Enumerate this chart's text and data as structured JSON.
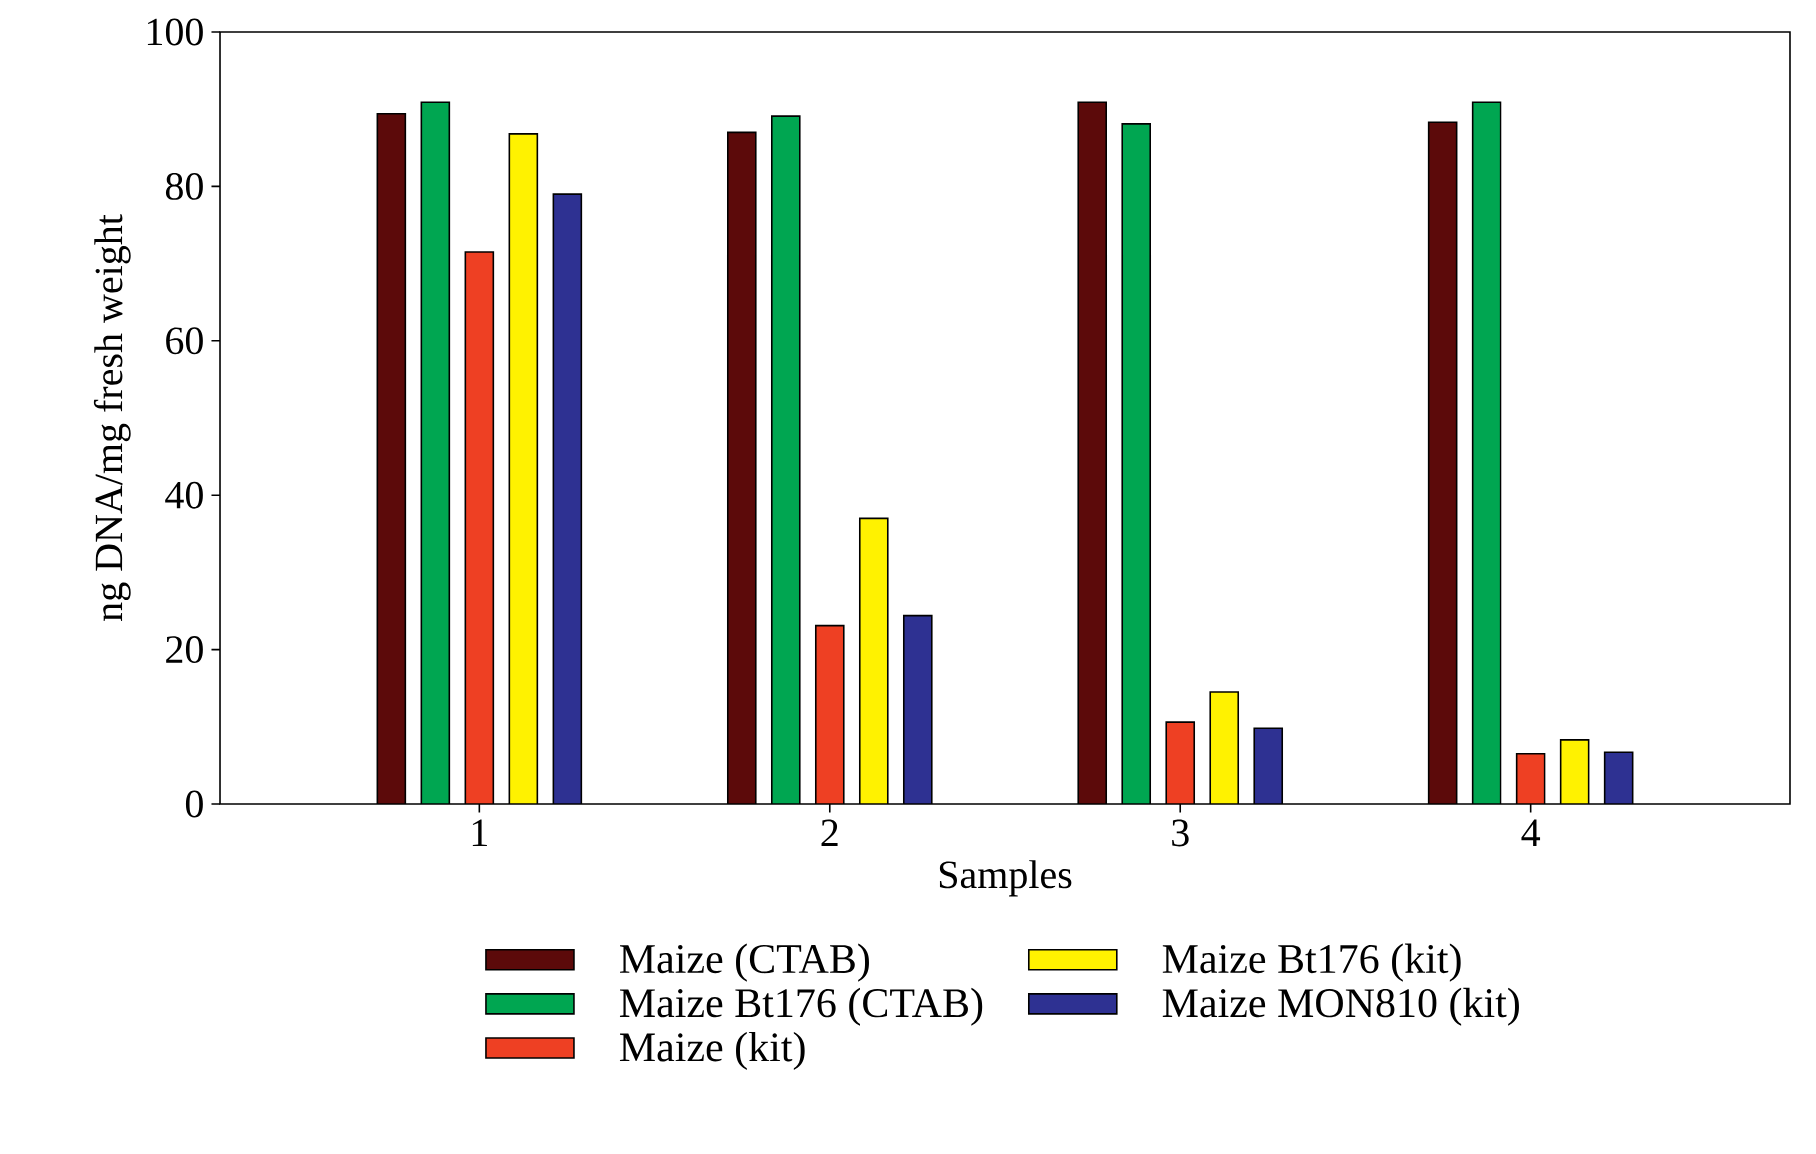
{
  "chart_data": {
    "type": "bar",
    "xlabel": "Samples",
    "ylabel": "ng DNA/mg fresh weight",
    "categories": [
      "1",
      "2",
      "3",
      "4"
    ],
    "series": [
      {
        "name": "Maize (CTAB)",
        "color": "#5c0a0a",
        "values": [
          89.4,
          87.0,
          90.9,
          88.3
        ]
      },
      {
        "name": "Maize Bt176 (CTAB)",
        "color": "#00a651",
        "values": [
          90.9,
          89.1,
          88.1,
          90.9
        ]
      },
      {
        "name": "Maize (kit)",
        "color": "#ee4023",
        "values": [
          71.5,
          23.1,
          10.6,
          6.5
        ]
      },
      {
        "name": "Maize Bt176 (kit)",
        "color": "#fff200",
        "values": [
          86.8,
          37.0,
          14.5,
          8.3
        ]
      },
      {
        "name": "Maize MON810 (kit)",
        "color": "#2e3192",
        "values": [
          79.0,
          24.4,
          9.8,
          6.7
        ]
      }
    ],
    "ylim": [
      0,
      100
    ],
    "yticks": [
      0,
      20,
      40,
      60,
      80,
      100
    ],
    "grid": false,
    "legend": "bottom"
  }
}
